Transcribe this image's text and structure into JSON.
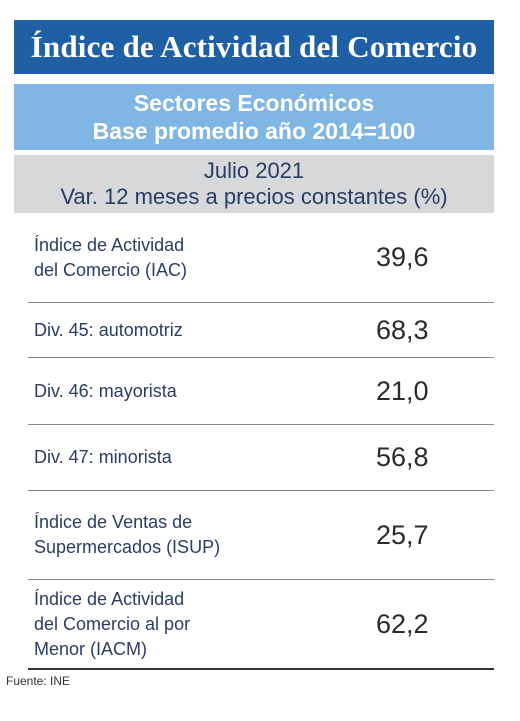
{
  "header": {
    "title": "Índice de Actividad del Comercio",
    "subtitle_line1": "Sectores Económicos",
    "subtitle_line2": "Base promedio año 2014=100",
    "period_line1": "Julio 2021",
    "period_line2": "Var. 12 meses a precios constantes (%)"
  },
  "table": {
    "rows": [
      {
        "label_lines": [
          "Índice de Actividad",
          "del Comercio (IAC)"
        ],
        "value": "39,6"
      },
      {
        "label_lines": [
          "Div. 45: automotriz"
        ],
        "value": "68,3"
      },
      {
        "label_lines": [
          "Div. 46: mayorista"
        ],
        "value": "21,0"
      },
      {
        "label_lines": [
          "Div. 47: minorista"
        ],
        "value": "56,8"
      },
      {
        "label_lines": [
          "Índice de Ventas de",
          "Supermercados (ISUP)"
        ],
        "value": "25,7"
      },
      {
        "label_lines": [
          "Índice de Actividad",
          "del Comercio al por",
          "Menor (IACM)"
        ],
        "value": "62,2"
      }
    ]
  },
  "footer": {
    "source": "Fuente: INE"
  },
  "colors": {
    "title_bg": "#1f5fa6",
    "subtitle_bg": "#7fb6e4",
    "period_bg": "#d7d8da",
    "label_text": "#2a3d66"
  }
}
